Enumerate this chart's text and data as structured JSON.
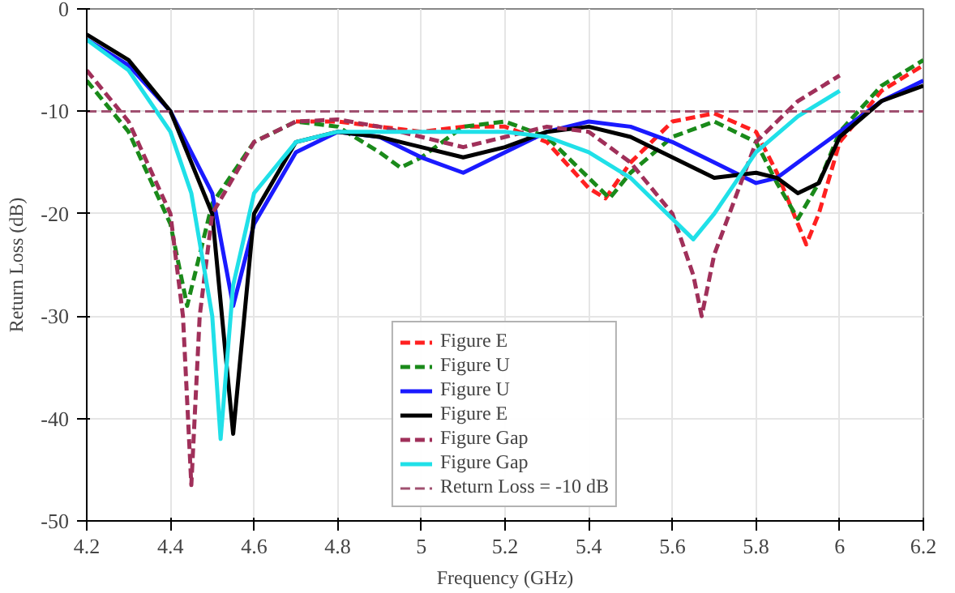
{
  "chart_data": {
    "type": "line",
    "xlabel": "Frequency (GHz)",
    "ylabel": "Return Loss (dB)",
    "xlim": [
      4.2,
      6.2
    ],
    "xticks": [
      4.2,
      4.4,
      4.6,
      4.8,
      5,
      5.2,
      5.4,
      5.6,
      5.8,
      6,
      6.2
    ],
    "ylim": [
      -50,
      0
    ],
    "yticks": [
      -50,
      -40,
      -30,
      -20,
      -10,
      0
    ],
    "grid": true,
    "legend": "bottom",
    "marker": "none",
    "series": [
      {
        "name": "Figure E",
        "color": "#ff2020",
        "line_style": "dashed",
        "x": [
          4.7,
          4.8,
          4.9,
          5.0,
          5.1,
          5.2,
          5.3,
          5.4,
          5.44,
          5.5,
          5.6,
          5.7,
          5.8,
          5.85,
          5.9,
          5.92,
          5.95,
          6.0,
          6.1,
          6.2
        ],
        "values": [
          -11,
          -11,
          -11.5,
          -12,
          -11.5,
          -11.5,
          -13,
          -17.5,
          -18.5,
          -15,
          -11,
          -10.2,
          -12,
          -16,
          -21,
          -23,
          -20,
          -13,
          -8,
          -5.5
        ]
      },
      {
        "name": "Figure U",
        "color": "#1a8a1a",
        "line_style": "dashed",
        "x": [
          4.2,
          4.3,
          4.4,
          4.44,
          4.5,
          4.6,
          4.7,
          4.8,
          4.9,
          4.95,
          5.0,
          5.1,
          5.2,
          5.3,
          5.4,
          5.45,
          5.5,
          5.6,
          5.7,
          5.8,
          5.85,
          5.9,
          5.95,
          6.0,
          6.1,
          6.2
        ],
        "values": [
          -7,
          -12,
          -21,
          -29,
          -19,
          -13,
          -11,
          -11.5,
          -14,
          -15.5,
          -14.5,
          -11.5,
          -11,
          -12.5,
          -16.5,
          -18.5,
          -16,
          -12.5,
          -11,
          -13,
          -17,
          -20.5,
          -17,
          -12,
          -7.5,
          -5
        ]
      },
      {
        "name": "Figure U",
        "color": "#1a1aff",
        "line_style": "solid",
        "x": [
          4.2,
          4.3,
          4.4,
          4.5,
          4.55,
          4.6,
          4.7,
          4.8,
          4.9,
          5.0,
          5.1,
          5.2,
          5.3,
          5.4,
          5.5,
          5.6,
          5.7,
          5.8,
          5.85,
          5.9,
          6.0,
          6.1,
          6.2
        ],
        "values": [
          -3,
          -5.5,
          -10,
          -18,
          -29,
          -21,
          -14,
          -12,
          -12.5,
          -14.5,
          -16,
          -14,
          -12,
          -11,
          -11.5,
          -13,
          -15,
          -17,
          -16.5,
          -15,
          -12,
          -9,
          -7
        ]
      },
      {
        "name": "Figure E",
        "color": "#000000",
        "line_style": "solid",
        "x": [
          4.2,
          4.3,
          4.4,
          4.5,
          4.55,
          4.6,
          4.7,
          4.8,
          4.9,
          5.0,
          5.1,
          5.2,
          5.3,
          5.4,
          5.5,
          5.6,
          5.7,
          5.8,
          5.85,
          5.9,
          5.95,
          6.0,
          6.1,
          6.2
        ],
        "values": [
          -2.5,
          -5,
          -10,
          -20,
          -41.5,
          -20,
          -13,
          -12,
          -12.5,
          -13.5,
          -14.5,
          -13.5,
          -12,
          -11.5,
          -12.5,
          -14.5,
          -16.5,
          -16,
          -16.5,
          -18,
          -17,
          -12.5,
          -9,
          -7.5
        ]
      },
      {
        "name": "Figure Gap",
        "color": "#a0305a",
        "line_style": "dashed",
        "x": [
          4.2,
          4.3,
          4.4,
          4.43,
          4.45,
          4.47,
          4.5,
          4.6,
          4.7,
          4.8,
          4.9,
          5.0,
          5.1,
          5.2,
          5.3,
          5.4,
          5.5,
          5.6,
          5.65,
          5.67,
          5.7,
          5.8,
          5.9,
          6.0
        ],
        "values": [
          -6,
          -11,
          -20,
          -30,
          -46.5,
          -30,
          -20,
          -13,
          -11,
          -10.8,
          -11.5,
          -12.5,
          -13.5,
          -12.5,
          -11.5,
          -12,
          -15,
          -20,
          -26,
          -30,
          -24,
          -13,
          -9,
          -6.5
        ]
      },
      {
        "name": "Figure Gap",
        "color": "#20e0e8",
        "line_style": "solid",
        "x": [
          4.2,
          4.3,
          4.4,
          4.45,
          4.5,
          4.52,
          4.55,
          4.6,
          4.7,
          4.8,
          4.9,
          5.0,
          5.2,
          5.3,
          5.4,
          5.5,
          5.6,
          5.65,
          5.7,
          5.8,
          5.9,
          6.0
        ],
        "values": [
          -3,
          -6,
          -12,
          -18,
          -30,
          -42,
          -27,
          -18,
          -13,
          -12,
          -12,
          -12,
          -12,
          -12.5,
          -14,
          -16.5,
          -20.5,
          -22.5,
          -20,
          -14,
          -10.5,
          -8
        ]
      }
    ],
    "ref_lines": [
      {
        "axis": "y",
        "value": -10,
        "label": "Return Loss = -10 dB",
        "color": "#a05070",
        "line_style": "dashed"
      }
    ]
  }
}
